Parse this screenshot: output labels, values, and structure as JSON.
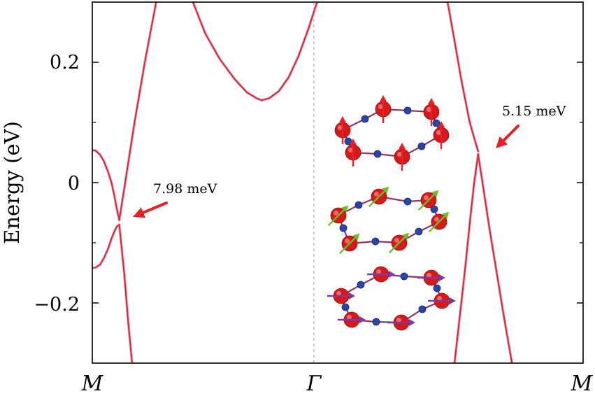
{
  "chart_data": {
    "type": "line",
    "title": "",
    "xlabel": "",
    "ylabel": "Energy (eV)",
    "x_tick_labels": [
      "M",
      "Γ",
      "M"
    ],
    "y_ticks": [
      {
        "value": 0.2,
        "label": "0.2"
      },
      {
        "value": 0,
        "label": "0"
      },
      {
        "value": -0.2,
        "label": "−0.2"
      }
    ],
    "xlim": [
      0,
      1
    ],
    "ylim": [
      -0.3,
      0.3
    ],
    "grid": false,
    "colors": {
      "band": "#e8202a",
      "band_shadow": "#8f7ab8",
      "axis": "#000000",
      "gamma_line": "#9a9a9a",
      "arrow": "#e8202a",
      "atom_large": "#d41a1a",
      "atom_small": "#2a45a8",
      "spin_out_of_plane": "#e8202a",
      "spin_tilted": "#6bbf2a",
      "spin_in_plane": "#7a3aa0"
    },
    "series": [
      {
        "points": [
          [
            0.0,
            0.054
          ],
          [
            0.007,
            0.053
          ],
          [
            0.016,
            0.046
          ],
          [
            0.024,
            0.035
          ],
          [
            0.032,
            0.018
          ],
          [
            0.039,
            0.0
          ],
          [
            0.045,
            -0.022
          ],
          [
            0.05,
            -0.044
          ],
          [
            0.055,
            -0.062
          ]
        ]
      },
      {
        "points": [
          [
            0.0,
            -0.142
          ],
          [
            0.007,
            -0.141
          ],
          [
            0.016,
            -0.136
          ],
          [
            0.024,
            -0.125
          ],
          [
            0.032,
            -0.11
          ],
          [
            0.039,
            -0.093
          ],
          [
            0.045,
            -0.081
          ],
          [
            0.05,
            -0.073
          ],
          [
            0.055,
            -0.07
          ]
        ]
      },
      {
        "points": [
          [
            0.055,
            -0.062
          ],
          [
            0.067,
            0.0
          ],
          [
            0.086,
            0.1
          ],
          [
            0.107,
            0.2
          ],
          [
            0.13,
            0.3
          ]
        ]
      },
      {
        "points": [
          [
            0.055,
            -0.07
          ],
          [
            0.065,
            -0.15
          ],
          [
            0.073,
            -0.23
          ],
          [
            0.081,
            -0.3
          ]
        ]
      },
      {
        "points": [
          [
            0.205,
            0.3
          ],
          [
            0.23,
            0.248
          ],
          [
            0.26,
            0.205
          ],
          [
            0.29,
            0.172
          ],
          [
            0.315,
            0.15
          ],
          [
            0.335,
            0.14
          ],
          [
            0.345,
            0.137
          ]
        ]
      },
      {
        "points": [
          [
            0.345,
            0.137
          ],
          [
            0.36,
            0.14
          ],
          [
            0.38,
            0.152
          ],
          [
            0.4,
            0.175
          ],
          [
            0.42,
            0.21
          ],
          [
            0.44,
            0.255
          ],
          [
            0.458,
            0.3
          ]
        ]
      },
      {
        "points": [
          [
            0.724,
            0.3
          ],
          [
            0.737,
            0.24
          ],
          [
            0.752,
            0.17
          ],
          [
            0.769,
            0.1
          ],
          [
            0.786,
            0.052
          ]
        ]
      },
      {
        "points": [
          [
            0.786,
            0.047
          ],
          [
            0.778,
            0.0
          ],
          [
            0.77,
            -0.06
          ],
          [
            0.76,
            -0.14
          ],
          [
            0.749,
            -0.22
          ],
          [
            0.738,
            -0.3
          ]
        ]
      },
      {
        "points": [
          [
            0.786,
            0.047
          ],
          [
            0.795,
            0.0
          ],
          [
            0.808,
            -0.07
          ],
          [
            0.822,
            -0.14
          ],
          [
            0.838,
            -0.22
          ],
          [
            0.855,
            -0.3
          ]
        ]
      }
    ],
    "annotations": [
      {
        "text": "7.98 meV",
        "x": 0.055,
        "y": -0.066
      },
      {
        "text": "5.15 meV",
        "x": 0.786,
        "y": 0.05
      }
    ],
    "inset": {
      "rings": 3,
      "spins": [
        "out-of-plane",
        "tilted",
        "in-plane"
      ]
    }
  }
}
